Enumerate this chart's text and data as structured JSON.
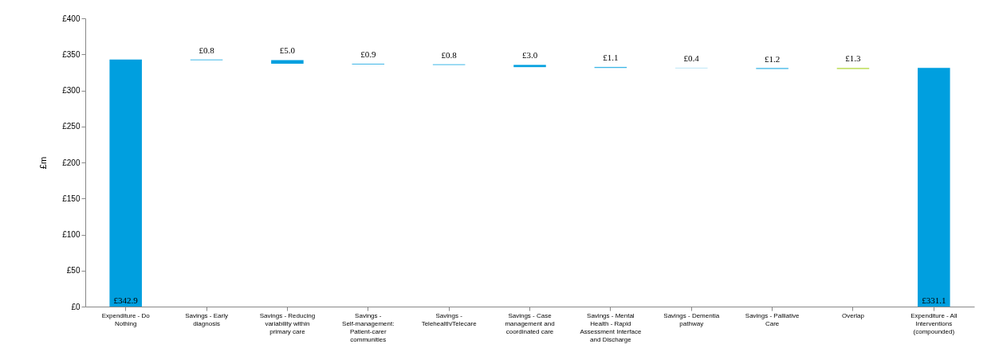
{
  "chart_data": {
    "type": "bar",
    "ylabel": "£m",
    "categories": [
      "Expenditure - Do Nothing",
      "Savings - Early diagnosis",
      "Savings - Reducing variability within primary care",
      "Savings - Self-management: Patient-carer communities",
      "Savings - Telehealth/Telecare",
      "Savings - Case management and coordinated care",
      "Savings - Mental Health - Rapid Assessment Interface and Discharge",
      "Savings - Dementia pathway",
      "Savings - Palliative Care",
      "Overlap",
      "Expenditure - All Interventions (compounded)"
    ],
    "base": [
      0,
      342.1,
      337.1,
      336.2,
      335.4,
      332.4,
      331.3,
      330.9,
      329.7,
      329.7,
      0
    ],
    "values": [
      342.9,
      0.8,
      5.0,
      0.9,
      0.8,
      3.0,
      1.1,
      0.4,
      1.2,
      1.3,
      331.1
    ],
    "colors": [
      "#009fdf",
      "#009fdf",
      "#009fdf",
      "#009fdf",
      "#009fdf",
      "#009fdf",
      "#009fdf",
      "#009fdf",
      "#009fdf",
      "#99cc00",
      "#009fdf"
    ],
    "value_labels": [
      "£342.9",
      "£0.8",
      "£5.0",
      "£0.9",
      "£0.8",
      "£3.0",
      "£1.1",
      "£0.4",
      "£1.2",
      "£1.3",
      "£331.1"
    ],
    "ylim": [
      0,
      400
    ],
    "yticks": [
      {
        "value": 0,
        "label": "£0"
      },
      {
        "value": 50,
        "label": "£50"
      },
      {
        "value": 100,
        "label": "£100"
      },
      {
        "value": 150,
        "label": "£150"
      },
      {
        "value": 200,
        "label": "£200"
      },
      {
        "value": 250,
        "label": "£250"
      },
      {
        "value": 300,
        "label": "£300"
      },
      {
        "value": 350,
        "label": "£350"
      },
      {
        "value": 400,
        "label": "£400"
      }
    ],
    "grid": false
  }
}
